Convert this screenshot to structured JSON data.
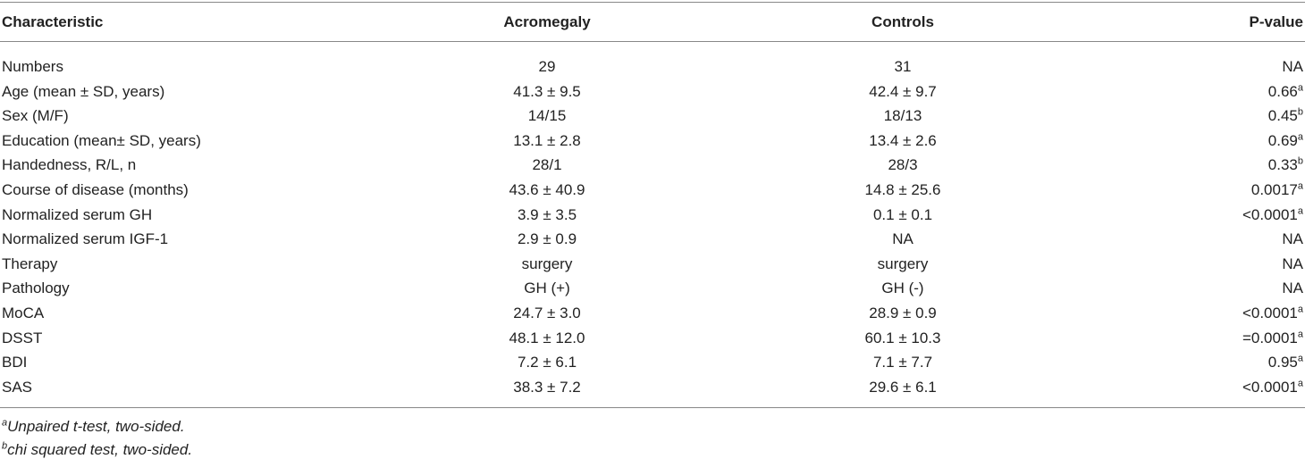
{
  "table": {
    "header": [
      "Characteristic",
      "Acromegaly",
      "Controls",
      "P-value"
    ],
    "rows": [
      [
        "Numbers",
        "29",
        "31",
        {
          "text": "NA"
        }
      ],
      [
        "Age (mean ± SD, years)",
        "41.3 ± 9.5",
        "42.4 ± 9.7",
        {
          "text": "0.66",
          "sup": "a"
        }
      ],
      [
        "Sex (M/F)",
        "14/15",
        "18/13",
        {
          "text": "0.45",
          "sup": "b"
        }
      ],
      [
        "Education (mean± SD, years)",
        "13.1 ± 2.8",
        "13.4 ± 2.6",
        {
          "text": "0.69",
          "sup": "a"
        }
      ],
      [
        "Handedness, R/L, n",
        "28/1",
        "28/3",
        {
          "text": "0.33",
          "sup": "b"
        }
      ],
      [
        "Course of disease (months)",
        "43.6 ± 40.9",
        "14.8 ± 25.6",
        {
          "text": "0.0017",
          "sup": "a"
        }
      ],
      [
        "Normalized serum GH",
        "3.9 ± 3.5",
        "0.1 ± 0.1",
        {
          "text": "<0.0001",
          "sup": "a"
        }
      ],
      [
        "Normalized serum IGF-1",
        "2.9 ± 0.9",
        "NA",
        {
          "text": "NA"
        }
      ],
      [
        "Therapy",
        "surgery",
        "surgery",
        {
          "text": "NA"
        }
      ],
      [
        "Pathology",
        "GH (+)",
        "GH (-)",
        {
          "text": "NA"
        }
      ],
      [
        "MoCA",
        "24.7 ± 3.0",
        "28.9 ± 0.9",
        {
          "text": "<0.0001",
          "sup": "a"
        }
      ],
      [
        "DSST",
        "48.1 ± 12.0",
        "60.1 ± 10.3",
        {
          "text": "=0.0001",
          "sup": "a"
        }
      ],
      [
        "BDI",
        "7.2 ± 6.1",
        "7.1 ± 7.7",
        {
          "text": "0.95",
          "sup": "a"
        }
      ],
      [
        "SAS",
        "38.3 ± 7.2",
        "29.6 ± 6.1",
        {
          "text": "<0.0001",
          "sup": "a"
        }
      ]
    ],
    "footnotes": [
      {
        "mark": "a",
        "text": "Unpaired t-test, two-sided."
      },
      {
        "mark": "b",
        "text": "chi squared test, two-sided."
      }
    ]
  }
}
